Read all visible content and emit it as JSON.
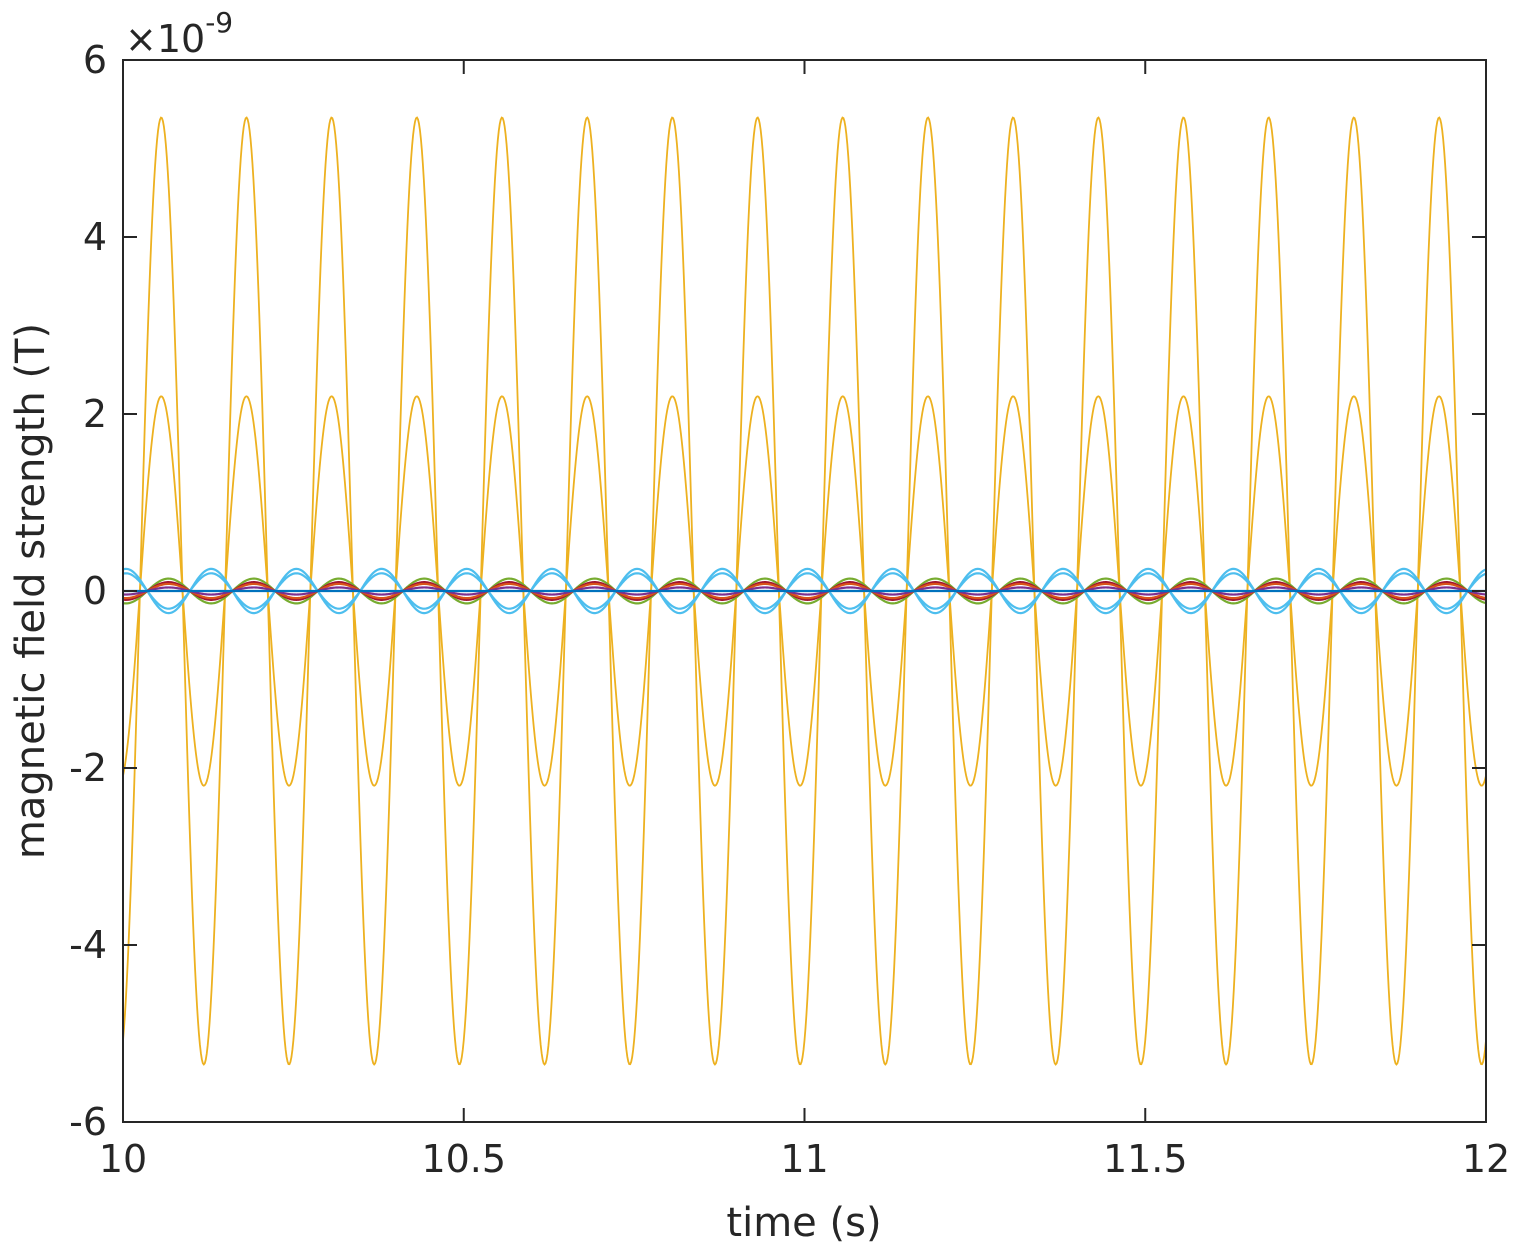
{
  "chart_data": {
    "type": "line",
    "title": "",
    "xlabel": "time (s)",
    "ylabel": "magnetic field strength (T)",
    "y_exponent_label": {
      "base": "×10",
      "exponent": "-9"
    },
    "xlim": [
      10,
      12
    ],
    "ylim": [
      -6,
      6
    ],
    "x_ticks": [
      10,
      10.5,
      11,
      11.5,
      12
    ],
    "x_tick_labels": [
      "10",
      "10.5",
      "11",
      "11.5",
      "12"
    ],
    "y_ticks": [
      -6,
      -4,
      -2,
      0,
      2,
      4,
      6
    ],
    "y_tick_labels": [
      "-6",
      "-4",
      "-2",
      "0",
      "2",
      "4",
      "6"
    ],
    "y_scale_factor": 1e-09,
    "grid": false,
    "legend": "none",
    "sampled_x": [
      10.0,
      10.04,
      10.08,
      10.12,
      10.16,
      10.2,
      10.24,
      10.28,
      10.32,
      10.36,
      10.4,
      10.44,
      10.48,
      10.52,
      10.56,
      10.6,
      10.64,
      10.68,
      10.72,
      10.76,
      10.8,
      10.84,
      10.88,
      10.92,
      10.96,
      11.0,
      11.04,
      11.08,
      11.12,
      11.16,
      11.2,
      11.24,
      11.28,
      11.32,
      11.36,
      11.4,
      11.44,
      11.48,
      11.52,
      11.56,
      11.6,
      11.64,
      11.68,
      11.72,
      11.76,
      11.8,
      11.84,
      11.88,
      11.92,
      11.96,
      12.0
    ],
    "series": [
      {
        "color": "#EDB120",
        "amplitude": 5.35,
        "frequency_hz": 8,
        "phase_rad": -1.25,
        "values": [
          -5.1,
          5.28,
          -1.4,
          -5.17,
          4.08,
          2.69,
          -4.74,
          -3.63,
          3.61,
          4.67,
          -2.26,
          -5.2,
          0.86,
          5.3,
          -0.78,
          -5.23,
          2.32,
          4.7,
          -3.66,
          -3.62,
          4.61,
          2.66,
          -5.2,
          -1.2,
          5.32,
          -0.46,
          -5.1,
          1.97,
          4.85,
          -3.4,
          -3.9,
          4.46,
          2.95,
          -5.1,
          -1.6,
          5.34,
          0.1,
          -5.28,
          1.78,
          4.9,
          -3.3,
          -3.95,
          4.4,
          3.0,
          -5.05,
          -1.65,
          5.35,
          0.2,
          -5.3,
          1.7,
          4.95
        ]
      },
      {
        "color": "#EDB120",
        "amplitude": 2.2,
        "frequency_hz": 8,
        "phase_rad": -1.25,
        "values": [
          -2.1,
          2.17,
          -0.58,
          -2.13,
          1.68,
          1.11,
          -1.95,
          -1.49,
          1.49,
          1.92,
          -0.93,
          -2.14,
          0.35,
          2.18,
          -0.32,
          -2.15,
          0.95,
          1.93,
          -1.51,
          -1.49,
          1.9,
          1.09,
          -2.14,
          -0.49,
          2.19,
          -0.19,
          -2.1,
          0.81,
          2.0,
          -1.4,
          -1.6,
          1.83,
          1.21,
          -2.1,
          -0.66,
          2.2,
          0.04,
          -2.17,
          0.73,
          2.01,
          -1.36,
          -1.62,
          1.81,
          1.23,
          -2.08,
          -0.68,
          2.2,
          0.08,
          -2.18,
          0.7,
          2.04
        ]
      },
      {
        "color": "#4DBEEE",
        "amplitude": 0.25,
        "frequency_hz": 8,
        "phase_rad": 1.35
      },
      {
        "color": "#4DBEEE",
        "amplitude": 0.2,
        "frequency_hz": 8,
        "phase_rad": 1.35
      },
      {
        "color": "#77AC30",
        "amplitude": 0.14,
        "frequency_hz": 8,
        "phase_rad": -1.79
      },
      {
        "color": "#A2142F",
        "amplitude": 0.1,
        "frequency_hz": 8,
        "phase_rad": -1.79
      },
      {
        "color": "#D95319",
        "amplitude": 0.08,
        "frequency_hz": 8,
        "phase_rad": -1.79
      },
      {
        "color": "#7E2F8E",
        "amplitude": 0.04,
        "frequency_hz": 8,
        "phase_rad": -1.79
      },
      {
        "color": "#0072BD",
        "amplitude": 0.0,
        "frequency_hz": 8,
        "phase_rad": 0
      }
    ]
  }
}
